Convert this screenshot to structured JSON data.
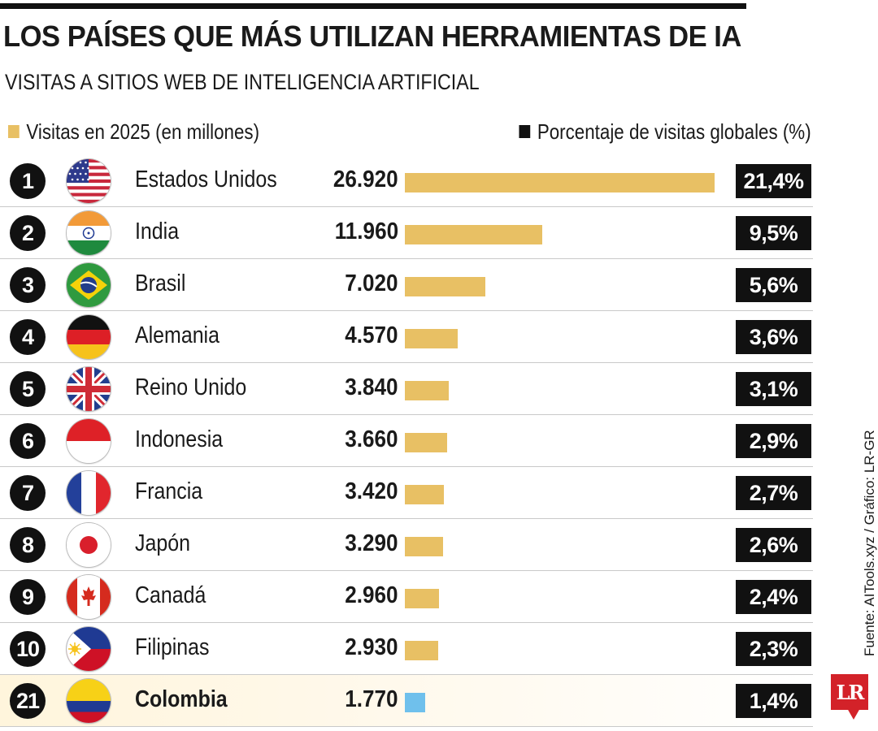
{
  "header": {
    "title": "LOS PAÍSES QUE MÁS UTILIZAN HERRAMIENTAS DE IA",
    "subtitle": "VISITAS A SITIOS WEB DE INTELIGENCIA ARTIFICIAL"
  },
  "legend": {
    "visits": "Visitas en 2025 (en millones)",
    "share": "Porcentaje de visitas globales (%)"
  },
  "colors": {
    "bar": "#e8c064",
    "highlight_bar": "#6fc0ec",
    "label_bg": "#111111",
    "brand": "#d32229"
  },
  "chart_data": {
    "type": "bar",
    "orientation": "horizontal",
    "title": "LOS PAÍSES QUE MÁS UTILIZAN HERRAMIENTAS DE IA",
    "subtitle": "VISITAS A SITIOS WEB DE INTELIGENCIA ARTIFICIAL",
    "rows": [
      {
        "rank": "1",
        "country": "Estados Unidos",
        "flag": "usa-flag-icon",
        "value": 26920,
        "label": "26.920",
        "pct": "21,4%"
      },
      {
        "rank": "2",
        "country": "India",
        "flag": "india-flag-icon",
        "value": 11960,
        "label": "11.960",
        "pct": "9,5%"
      },
      {
        "rank": "3",
        "country": "Brasil",
        "flag": "brazil-flag-icon",
        "value": 7020,
        "label": "7.020",
        "pct": "5,6%"
      },
      {
        "rank": "4",
        "country": "Alemania",
        "flag": "germany-flag-icon",
        "value": 4570,
        "label": "4.570",
        "pct": "3,6%"
      },
      {
        "rank": "5",
        "country": "Reino Unido",
        "flag": "uk-flag-icon",
        "value": 3840,
        "label": "3.840",
        "pct": "3,1%"
      },
      {
        "rank": "6",
        "country": "Indonesia",
        "flag": "indonesia-flag-icon",
        "value": 3660,
        "label": "3.660",
        "pct": "2,9%"
      },
      {
        "rank": "7",
        "country": "Francia",
        "flag": "france-flag-icon",
        "value": 3420,
        "label": "3.420",
        "pct": "2,7%"
      },
      {
        "rank": "8",
        "country": "Japón",
        "flag": "japan-flag-icon",
        "value": 3290,
        "label": "3.290",
        "pct": "2,6%"
      },
      {
        "rank": "9",
        "country": "Canadá",
        "flag": "canada-flag-icon",
        "value": 2960,
        "label": "2.960",
        "pct": "2,4%"
      },
      {
        "rank": "10",
        "country": "Filipinas",
        "flag": "philippines-flag-icon",
        "value": 2930,
        "label": "2.930",
        "pct": "2,3%"
      },
      {
        "rank": "21",
        "country": "Colombia",
        "flag": "colombia-flag-icon",
        "value": 1770,
        "label": "1.770",
        "pct": "1,4%",
        "highlight": true
      }
    ],
    "xlim": [
      0,
      26920
    ],
    "grid": false
  },
  "footer": {
    "source": "Fuente: AITools.xyz / Gráfico: LR-GR",
    "logo": "LR"
  }
}
